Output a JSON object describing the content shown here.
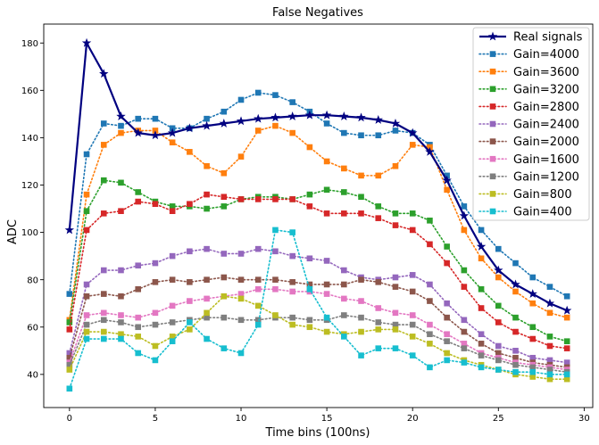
{
  "chart_data": {
    "type": "line",
    "title": "False Negatives",
    "xlabel": "Time bins (100ns)",
    "ylabel": "ADC",
    "xlim": [
      -1.5,
      30.5
    ],
    "ylim": [
      26,
      188
    ],
    "xticks": [
      0,
      5,
      10,
      15,
      20,
      25,
      30
    ],
    "yticks": [
      40,
      60,
      80,
      100,
      120,
      140,
      160,
      180
    ],
    "grid": false,
    "legend_position": "top-right",
    "x": [
      0,
      1,
      2,
      3,
      4,
      5,
      6,
      7,
      8,
      9,
      10,
      11,
      12,
      13,
      14,
      15,
      16,
      17,
      18,
      19,
      20,
      21,
      22,
      23,
      24,
      25,
      26,
      27,
      28,
      29
    ],
    "series": [
      {
        "name": "Real signals",
        "color": "#000080",
        "marker": "star",
        "linestyle": "solid",
        "values": [
          101,
          180,
          167,
          149,
          142,
          141,
          142,
          144,
          145,
          146,
          147,
          148,
          148.5,
          149,
          149.5,
          149.5,
          149,
          148.5,
          147.5,
          146,
          142,
          134,
          122,
          107,
          94,
          84,
          78,
          74,
          70,
          67
        ]
      },
      {
        "name": "Gain=4000",
        "color": "#1f77b4",
        "marker": "square",
        "linestyle": "dotted",
        "values": [
          74,
          133,
          146,
          145,
          148,
          148,
          144,
          144,
          148,
          151,
          156,
          159,
          158,
          155,
          151,
          146,
          142,
          141,
          141,
          143,
          142,
          137,
          124,
          111,
          101,
          93,
          87,
          81,
          77,
          73
        ]
      },
      {
        "name": "Gain=3600",
        "color": "#ff7f0e",
        "marker": "square",
        "linestyle": "dotted",
        "values": [
          63,
          116,
          137,
          142,
          143,
          143,
          138,
          134,
          128,
          125,
          132,
          143,
          145,
          142,
          136,
          130,
          127,
          124,
          124,
          128,
          137,
          136,
          118,
          101,
          89,
          81,
          75,
          70,
          66,
          64
        ]
      },
      {
        "name": "Gain=3200",
        "color": "#2ca02c",
        "marker": "square",
        "linestyle": "dotted",
        "values": [
          62,
          109,
          122,
          121,
          117,
          113,
          111,
          111,
          110,
          111,
          114,
          115,
          115,
          114,
          116,
          118,
          117,
          115,
          111,
          108,
          108,
          105,
          94,
          84,
          76,
          69,
          64,
          60,
          56,
          54
        ]
      },
      {
        "name": "Gain=2800",
        "color": "#d62728",
        "marker": "square",
        "linestyle": "dotted",
        "values": [
          59,
          101,
          108,
          109,
          113,
          112,
          109,
          112,
          116,
          115,
          114,
          114,
          114,
          114,
          111,
          108,
          108,
          108,
          106,
          103,
          101,
          95,
          87,
          77,
          68,
          62,
          58,
          55,
          52,
          51
        ]
      },
      {
        "name": "Gain=2400",
        "color": "#9467bd",
        "marker": "square",
        "linestyle": "dotted",
        "values": [
          49,
          78,
          84,
          84,
          86,
          87,
          90,
          92,
          93,
          91,
          91,
          93,
          92,
          90,
          89,
          88,
          84,
          81,
          80,
          81,
          82,
          78,
          70,
          63,
          57,
          52,
          50,
          47,
          46,
          45
        ]
      },
      {
        "name": "Gain=2000",
        "color": "#8c564b",
        "marker": "square",
        "linestyle": "dotted",
        "values": [
          47,
          73,
          74,
          73,
          76,
          79,
          80,
          79,
          80,
          81,
          80,
          80,
          80,
          79,
          78,
          78,
          78,
          80,
          79,
          77,
          75,
          71,
          64,
          58,
          53,
          49,
          47,
          45,
          44,
          43
        ]
      },
      {
        "name": "Gain=1600",
        "color": "#e377c2",
        "marker": "square",
        "linestyle": "dotted",
        "values": [
          45,
          65,
          66,
          65,
          64,
          66,
          69,
          71,
          72,
          73,
          74,
          76,
          76,
          75,
          75,
          74,
          72,
          71,
          68,
          66,
          65,
          61,
          57,
          53,
          49,
          47,
          45,
          44,
          43,
          42
        ]
      },
      {
        "name": "Gain=1200",
        "color": "#7f7f7f",
        "marker": "square",
        "linestyle": "dotted",
        "values": [
          44,
          61,
          63,
          62,
          60,
          61,
          62,
          63,
          64,
          64,
          63,
          63,
          64,
          64,
          63,
          63,
          65,
          64,
          62,
          61,
          61,
          57,
          54,
          51,
          48,
          46,
          44,
          43,
          42,
          41
        ]
      },
      {
        "name": "Gain=800",
        "color": "#bcbd22",
        "marker": "square",
        "linestyle": "dotted",
        "values": [
          42,
          58,
          58,
          57,
          56,
          52,
          56,
          59,
          66,
          73,
          72,
          69,
          65,
          61,
          60,
          58,
          57,
          58,
          59,
          59,
          56,
          53,
          49,
          46,
          44,
          42,
          40,
          39,
          38,
          38
        ]
      },
      {
        "name": "Gain=400",
        "color": "#17becf",
        "marker": "square",
        "linestyle": "dotted",
        "values": [
          34,
          55,
          55,
          55,
          49,
          46,
          54,
          62,
          55,
          51,
          49,
          61,
          101,
          100,
          76,
          64,
          56,
          48,
          51,
          51,
          48,
          43,
          46,
          45,
          43,
          42,
          41,
          41,
          40,
          40
        ]
      }
    ]
  }
}
